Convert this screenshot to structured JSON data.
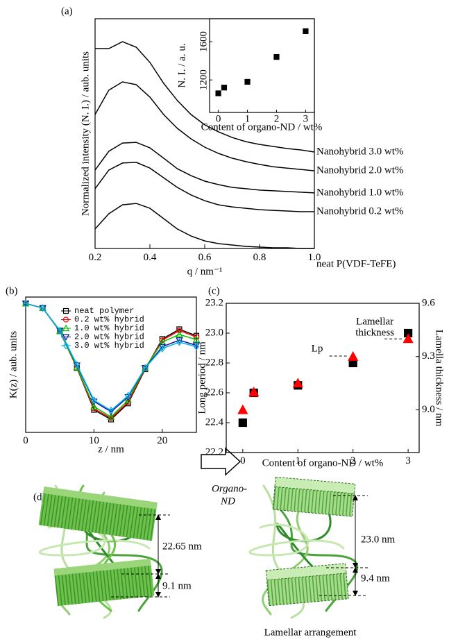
{
  "chart_data": [
    {
      "type": "line",
      "panel": "(a)",
      "x_label": "q / nm⁻¹",
      "y_label": "Normalized intensity (N. I.) / aub. units",
      "x": [
        0.2,
        0.25,
        0.3,
        0.35,
        0.4,
        0.45,
        0.5,
        0.55,
        0.6,
        0.65,
        0.7,
        0.75,
        0.8,
        0.85,
        0.9,
        0.95,
        1.0
      ],
      "xlim": [
        0.2,
        1.0
      ],
      "xticks": [
        0.2,
        0.4,
        0.6,
        0.8,
        {
          "value": 1.0,
          "label": "1.0"
        }
      ],
      "ylim": [
        0,
        100
      ],
      "series": [
        {
          "name": "neat P(VDF-TeFE)",
          "color": "#000000",
          "values": [
            8.5,
            15.1,
            19.0,
            19.6,
            17.5,
            13.0,
            8.5,
            5.4,
            3.3,
            2.1,
            1.5,
            0.9,
            0.6,
            0.3,
            0.3,
            0,
            0
          ]
        },
        {
          "name": "Nanohybrid 0.2 wt%",
          "color": "#000000",
          "values": [
            26.0,
            34.1,
            37.2,
            37.5,
            35.0,
            30.8,
            26.6,
            23.3,
            20.8,
            19.0,
            18.1,
            17.5,
            16.9,
            16.6,
            16.3,
            16.0,
            16.0
          ]
        },
        {
          "name": "Nanohybrid 1.0 wt%",
          "color": "#000000",
          "values": [
            34.1,
            42.3,
            45.9,
            46.2,
            43.8,
            39.3,
            34.7,
            31.7,
            29.3,
            27.8,
            26.6,
            26.0,
            25.4,
            25.1,
            24.8,
            24.5,
            24.2
          ]
        },
        {
          "name": "Nanohybrid 2.0 wt%",
          "color": "#000000",
          "values": [
            58.3,
            68.9,
            72.5,
            71.3,
            65.9,
            58.3,
            52.3,
            47.7,
            44.1,
            41.4,
            39.3,
            37.8,
            36.6,
            35.6,
            35.0,
            34.4,
            33.8
          ]
        },
        {
          "name": "Nanohybrid 3.0 wt%",
          "color": "#000000",
          "values": [
            87.0,
            87.0,
            90.0,
            87.6,
            81.0,
            71.9,
            64.4,
            58.3,
            53.8,
            50.8,
            48.3,
            46.5,
            45.3,
            44.4,
            43.5,
            42.9,
            42.0
          ]
        }
      ]
    },
    {
      "type": "scatter",
      "x_label": "Content of organo-ND / wt%",
      "y_label": "N. I. / a. u.",
      "x": [
        0,
        0.2,
        1,
        2,
        3
      ],
      "xlim": [
        -0.3,
        3.3
      ],
      "xticks": [
        0,
        1,
        2,
        3
      ],
      "ylim": [
        860,
        1840
      ],
      "yticks": [
        1200,
        1600
      ],
      "series": [
        {
          "color": "#000000",
          "marker": "square",
          "filled": true,
          "values": [
            1060,
            1120,
            1180,
            1440,
            1710
          ]
        }
      ]
    },
    {
      "type": "line",
      "panel": "(b)",
      "x_label": "z / nm",
      "y_label": "K(z) / aub. units",
      "x": [
        0,
        2.5,
        5,
        7.5,
        10,
        12.5,
        15,
        17.5,
        20,
        22.5,
        25
      ],
      "xlim": [
        0,
        25
      ],
      "xticks": [
        0,
        10,
        20
      ],
      "ylim": [
        -1.0,
        1.1
      ],
      "legend": "upper center",
      "series": [
        {
          "name": "neat polymer",
          "color": "#000000",
          "marker": "square",
          "values": [
            1.0,
            0.93,
            0.57,
            0.0,
            -0.65,
            -0.8,
            -0.55,
            -0.02,
            0.45,
            0.6,
            0.5
          ]
        },
        {
          "name": "0.2 wt% hybrid",
          "color": "#ff0000",
          "marker": "circle",
          "values": [
            1.0,
            0.93,
            0.57,
            0.0,
            -0.63,
            -0.78,
            -0.53,
            -0.01,
            0.43,
            0.58,
            0.48
          ]
        },
        {
          "name": "1.0 wt% hybrid",
          "color": "#00c000",
          "marker": "triangle",
          "values": [
            1.0,
            0.93,
            0.57,
            0.01,
            -0.6,
            -0.76,
            -0.5,
            0.0,
            0.4,
            0.52,
            0.44
          ]
        },
        {
          "name": "2.0 wt% hybrid",
          "color": "#1010a0",
          "marker": "triangle-down",
          "values": [
            1.0,
            0.93,
            0.58,
            0.04,
            -0.52,
            -0.68,
            -0.45,
            0.0,
            0.33,
            0.43,
            0.35
          ]
        },
        {
          "name": "3.0 wt% hybrid",
          "color": "#00b0e0",
          "marker": "diamond",
          "values": [
            1.0,
            0.93,
            0.58,
            0.05,
            -0.5,
            -0.66,
            -0.43,
            0.0,
            0.3,
            0.4,
            0.33
          ]
        }
      ]
    },
    {
      "type": "scatter",
      "panel": "(c)",
      "x_label": "Content of organo-ND / wt%",
      "y_label": "Long period / nm",
      "y2_label": "Lamella thickness / nm",
      "x": [
        0,
        0.2,
        1,
        2,
        3
      ],
      "xlim": [
        -0.3,
        3.2
      ],
      "xticks": [
        0,
        1,
        2,
        3
      ],
      "ylim": [
        22.2,
        23.2
      ],
      "yticks": [
        22.2,
        22.4,
        22.6,
        22.8,
        {
          "value": 23.0,
          "label": "23.0"
        },
        23.2
      ],
      "y2lim": [
        8.76,
        9.6
      ],
      "y2ticks": [
        {
          "value": 9.0,
          "label": "9.0"
        },
        9.3,
        9.6
      ],
      "annotations": [
        "Lp",
        "Lamellar",
        "thickness"
      ],
      "series": [
        {
          "color": "#000000",
          "marker": "square",
          "filled": true,
          "values": [
            22.4,
            22.6,
            22.65,
            22.8,
            23.0
          ]
        },
        {
          "color": "#ff0000",
          "marker": "triangle",
          "filled": true,
          "axis": "y2",
          "values": [
            9.0,
            9.1,
            9.15,
            9.3,
            9.4
          ]
        }
      ]
    }
  ],
  "diagram": {
    "panel": "(d)",
    "arrow_label": [
      "Organo-",
      "ND"
    ],
    "before": {
      "long_period": "22.65 nm",
      "thickness": "9.1 nm"
    },
    "after": {
      "long_period": "23.0 nm",
      "thickness": "9.4 nm"
    },
    "caption": "Lamellar arrangement"
  }
}
